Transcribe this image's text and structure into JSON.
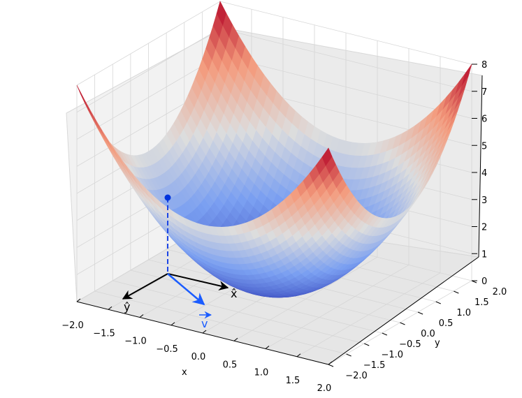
{
  "chart_data": {
    "type": "surface3d",
    "title": "",
    "function": "z = x^2 + y^2",
    "surface_samples": {
      "x": [
        -2.0,
        0.0,
        2.0
      ],
      "y": [
        -2.0,
        0.0,
        2.0
      ],
      "z": [
        [
          8,
          4,
          8
        ],
        [
          4,
          0,
          4
        ],
        [
          8,
          4,
          8
        ]
      ]
    },
    "colormap": "coolwarm",
    "grid": true,
    "axes": {
      "x": {
        "label": "x",
        "range": [
          -2.0,
          2.0
        ],
        "ticks": [
          "−2.0",
          "−1.5",
          "−1.0",
          "−0.5",
          "0.0",
          "0.5",
          "1.0",
          "1.5",
          "2.0"
        ]
      },
      "y": {
        "label": "y",
        "range": [
          -2.0,
          2.0
        ],
        "ticks": [
          "−2.0",
          "−1.5",
          "−1.0",
          "−0.5",
          "0.0",
          "0.5",
          "1.0",
          "1.5",
          "2.0"
        ]
      },
      "z": {
        "label": "",
        "range": [
          0,
          8
        ],
        "ticks": [
          "0",
          "1",
          "2",
          "3",
          "4",
          "5",
          "6",
          "7",
          "8"
        ]
      }
    },
    "annotations": {
      "point": {
        "x": -1.0,
        "y": -1.0,
        "z": 2.9,
        "color": "#0033dd"
      },
      "x_hat_label": "x̂",
      "y_hat_label": "ŷ",
      "v_label": "v",
      "v_color": "#1a5cff"
    }
  }
}
